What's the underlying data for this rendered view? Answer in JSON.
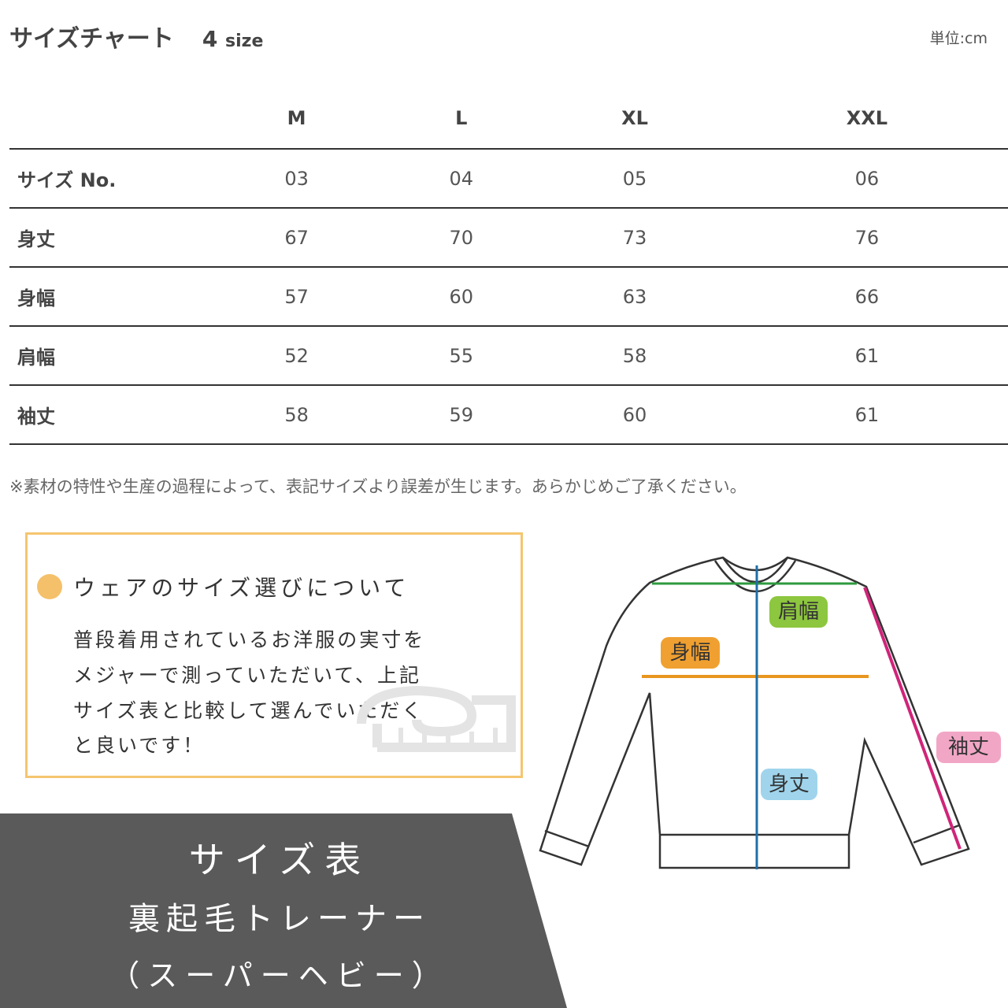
{
  "header": {
    "title": "サイズチャート",
    "size_count": "4",
    "size_word": "size",
    "unit": "単位:cm"
  },
  "table": {
    "columns": [
      "M",
      "L",
      "XL",
      "XXL"
    ],
    "rows": [
      {
        "label": "サイズ No.",
        "values": [
          "03",
          "04",
          "05",
          "06"
        ]
      },
      {
        "label": "身丈",
        "values": [
          "67",
          "70",
          "73",
          "76"
        ]
      },
      {
        "label": "身幅",
        "values": [
          "57",
          "60",
          "63",
          "66"
        ]
      },
      {
        "label": "肩幅",
        "values": [
          "52",
          "55",
          "58",
          "61"
        ]
      },
      {
        "label": "袖丈",
        "values": [
          "58",
          "59",
          "60",
          "61"
        ]
      }
    ]
  },
  "note": "※素材の特性や生産の過程によって、表記サイズより誤差が生じます。あらかじめご了承ください。",
  "tip": {
    "heading": "ウェアのサイズ選びについて",
    "lines": [
      "普段着用されているお洋服の実寸を",
      "メジャーで測っていただいて、上記",
      "サイズ表と比較して選んでいただく",
      "と良いです！"
    ]
  },
  "banner": {
    "line1": "サイズ表",
    "line2": "裏起毛トレーナー",
    "line3": "（スーパーヘビー）"
  },
  "diagram": {
    "shoulder": "肩幅",
    "width": "身幅",
    "length": "身丈",
    "sleeve": "袖丈",
    "colors": {
      "shoulder": "#2e9a3e",
      "width": "#e8961e",
      "length": "#1f6fa8",
      "sleeve": "#d0247a",
      "shoulder_tag": "#8dc63f",
      "width_tag": "#f0a030",
      "length_tag": "#9fd4ec",
      "sleeve_tag": "#f2a6c6"
    }
  }
}
